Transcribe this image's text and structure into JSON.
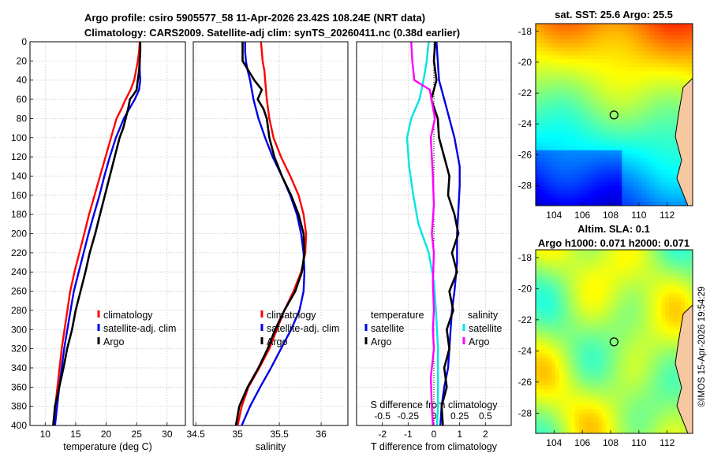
{
  "header": {
    "title_line1": "Argo profile: csiro 5905577_58 11-Apr-2026 23.42S 108.24E (NRT data)",
    "title_line2": "Climatology: CARS2009. Satellite-adj clim: synTS_20260411.nc (0.38d earlier)"
  },
  "colors": {
    "climatology": "#ff0000",
    "satellite": "#0000e6",
    "argo": "#000000",
    "s_satellite": "#00e5e5",
    "s_argo": "#ff00ff"
  },
  "credit": "©IMOS 15-Apr-2026 19:54:29",
  "maps": {
    "sst": {
      "title": "sat. SST: 25.6 Argo: 25.5"
    },
    "sla": {
      "title_line1": "Altim. SLA: 0.1",
      "title_line2": "Argo h1000: 0.071 h2000: 0.071"
    },
    "lon_ticks": [
      "104",
      "106",
      "108",
      "110",
      "112"
    ],
    "lat_ticks": [
      "-18",
      "-20",
      "-22",
      "-24",
      "-26",
      "-28"
    ],
    "lon_range": [
      102.7,
      113.8
    ],
    "lat_range": [
      -29.3,
      -17.5
    ],
    "argo_position": [
      108.24,
      -23.42
    ]
  },
  "chart_data": [
    {
      "type": "line",
      "name": "temperature",
      "xlabel": "temperature (deg C)",
      "xlim": [
        7.5,
        33
      ],
      "xticks": [
        "10",
        "15",
        "20",
        "25",
        "30"
      ],
      "ylim": [
        0,
        400
      ],
      "yticks": [
        "0",
        "20",
        "40",
        "60",
        "80",
        "100",
        "120",
        "140",
        "160",
        "180",
        "200",
        "220",
        "240",
        "260",
        "280",
        "300",
        "320",
        "340",
        "360",
        "380",
        "400"
      ],
      "legend": [
        "climatology",
        "satellite-adj. clim",
        "Argo"
      ],
      "series": [
        {
          "name": "climatology",
          "x": [
            25.5,
            25.4,
            25.2,
            24.9,
            24.6,
            24.0,
            23.2,
            22.5,
            21.7,
            20.8,
            19.9,
            19.0,
            18.1,
            17.2,
            16.4,
            15.6,
            14.8,
            14.1,
            13.4,
            12.7,
            12.0,
            11.3
          ],
          "y": [
            0,
            10,
            20,
            30,
            40,
            50,
            60,
            70,
            80,
            100,
            120,
            140,
            160,
            180,
            200,
            220,
            240,
            260,
            290,
            320,
            360,
            400
          ]
        },
        {
          "name": "satellite-adj. clim",
          "x": [
            25.6,
            25.6,
            25.5,
            25.5,
            25.6,
            25.4,
            24.7,
            23.8,
            22.9,
            21.6,
            20.6,
            19.7,
            18.9,
            18.0,
            17.1,
            16.3,
            15.5,
            14.7,
            13.9,
            13.1,
            12.3,
            11.6
          ],
          "y": [
            0,
            10,
            20,
            30,
            40,
            50,
            60,
            70,
            80,
            100,
            120,
            140,
            160,
            180,
            200,
            220,
            240,
            260,
            290,
            320,
            360,
            400
          ]
        },
        {
          "name": "Argo",
          "x": [
            25.6,
            25.6,
            25.5,
            25.4,
            25.2,
            25.0,
            24.5,
            23.9,
            23.6,
            22.8,
            22.2,
            21.4,
            20.6,
            19.8,
            19.0,
            18.2,
            17.3,
            16.6,
            15.8,
            15.0,
            14.4,
            13.6,
            13.0,
            12.3,
            11.6,
            11.3
          ],
          "y": [
            0,
            10,
            20,
            30,
            40,
            50,
            55,
            60,
            70,
            90,
            100,
            120,
            140,
            160,
            180,
            200,
            220,
            240,
            260,
            280,
            300,
            320,
            340,
            360,
            380,
            400
          ]
        }
      ]
    },
    {
      "type": "line",
      "name": "salinity",
      "xlabel": "salinity",
      "xlim": [
        34.47,
        36.32
      ],
      "xticks": [
        "34.5",
        "35",
        "35.5",
        "36"
      ],
      "ylim": [
        0,
        400
      ],
      "legend": [
        "climatology",
        "satellite-adj. clim",
        "Argo"
      ],
      "series": [
        {
          "name": "climatology",
          "x": [
            35.28,
            35.29,
            35.3,
            35.32,
            35.33,
            35.35,
            35.38,
            35.43,
            35.52,
            35.63,
            35.73,
            35.79,
            35.82,
            35.81,
            35.76,
            35.67,
            35.56,
            35.47,
            35.38,
            35.26,
            35.13,
            35.05,
            35.0
          ],
          "y": [
            0,
            10,
            20,
            30,
            40,
            60,
            80,
            100,
            120,
            140,
            160,
            180,
            200,
            220,
            240,
            260,
            280,
            300,
            320,
            340,
            360,
            380,
            400
          ]
        },
        {
          "name": "satellite-adj. clim",
          "x": [
            35.09,
            35.09,
            35.1,
            35.12,
            35.15,
            35.19,
            35.25,
            35.33,
            35.42,
            35.53,
            35.63,
            35.71,
            35.76,
            35.79,
            35.8,
            35.79,
            35.74,
            35.64,
            35.52,
            35.4,
            35.27,
            35.15,
            35.05
          ],
          "y": [
            0,
            10,
            20,
            30,
            40,
            60,
            80,
            100,
            120,
            140,
            160,
            180,
            200,
            220,
            240,
            260,
            280,
            300,
            320,
            340,
            360,
            380,
            400
          ]
        },
        {
          "name": "Argo",
          "x": [
            35.06,
            35.06,
            35.06,
            35.13,
            35.2,
            35.29,
            35.24,
            35.31,
            35.35,
            35.38,
            35.44,
            35.53,
            35.64,
            35.73,
            35.79,
            35.8,
            35.77,
            35.69,
            35.56,
            35.45,
            35.36,
            35.25,
            35.12,
            35.02,
            34.98
          ],
          "y": [
            0,
            10,
            20,
            30,
            40,
            50,
            60,
            70,
            80,
            100,
            120,
            140,
            160,
            180,
            200,
            220,
            240,
            260,
            280,
            300,
            320,
            340,
            360,
            380,
            400
          ]
        }
      ]
    },
    {
      "type": "line",
      "name": "difference",
      "xlabel": "T difference from climatology",
      "xlim": [
        -3,
        3
      ],
      "xticks": [
        "-2",
        "-1",
        "0",
        "1",
        "2"
      ],
      "s_xlabel": "S difference from climatology",
      "s_xticks": [
        "-0.5",
        "-0.25",
        "0",
        "0.25",
        "0.5"
      ],
      "ylim": [
        0,
        400
      ],
      "legend_temperature": {
        "title": "temperature",
        "items": [
          "satellite",
          "Argo"
        ]
      },
      "legend_salinity": {
        "title": "salinity",
        "items": [
          "satellite",
          "Argo"
        ]
      },
      "series": [
        {
          "name": "T satellite",
          "x": [
            0.1,
            0.15,
            0.2,
            0.4,
            0.6,
            0.8,
            1.0,
            1.0,
            0.9,
            0.9,
            0.8,
            0.7,
            0.65,
            0.6,
            0.55,
            0.4,
            0.3,
            0.25
          ],
          "y": [
            0,
            20,
            40,
            60,
            80,
            100,
            130,
            150,
            200,
            230,
            260,
            280,
            300,
            320,
            340,
            360,
            380,
            400
          ]
        },
        {
          "name": "T Argo",
          "x": [
            0.05,
            0.0,
            0.1,
            0.0,
            -0.1,
            0.15,
            0.2,
            0.4,
            0.6,
            0.55,
            0.8,
            0.95,
            0.7,
            0.9,
            0.6,
            0.75,
            0.5,
            0.6,
            0.4,
            0.5,
            0.3,
            0.35
          ],
          "y": [
            0,
            20,
            40,
            50,
            60,
            80,
            100,
            120,
            140,
            160,
            180,
            200,
            220,
            240,
            260,
            280,
            300,
            320,
            340,
            360,
            380,
            400
          ]
        },
        {
          "name": "S satellite",
          "x": [
            -0.05,
            -0.07,
            -0.1,
            -0.14,
            -0.22,
            -0.26,
            -0.24,
            -0.2,
            -0.15,
            -0.05,
            0.0,
            0.02,
            0.03,
            0.04,
            0.04,
            0.04,
            0.04,
            0.03
          ],
          "y": [
            0,
            20,
            40,
            60,
            80,
            100,
            130,
            160,
            190,
            220,
            250,
            280,
            300,
            320,
            340,
            360,
            380,
            400
          ]
        },
        {
          "name": "S Argo",
          "x": [
            -0.22,
            -0.21,
            -0.19,
            -0.04,
            0.01,
            -0.03,
            -0.01,
            0.0,
            -0.02,
            0.0,
            -0.01,
            0.0,
            -0.01,
            0.0,
            -0.03,
            -0.02,
            -0.01
          ],
          "y": [
            0,
            20,
            40,
            50,
            80,
            100,
            140,
            170,
            200,
            220,
            250,
            280,
            300,
            320,
            350,
            380,
            400
          ]
        }
      ]
    }
  ]
}
